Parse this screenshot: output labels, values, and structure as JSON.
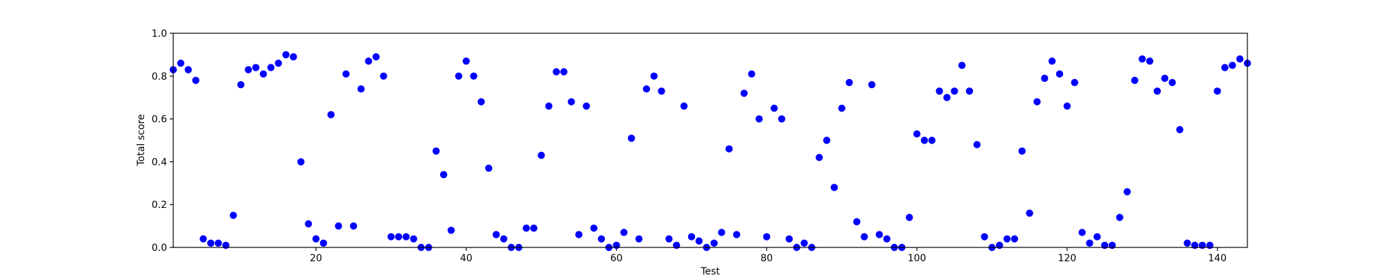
{
  "chart_data": {
    "type": "scatter",
    "title": "",
    "xlabel": "Test",
    "ylabel": "Total score",
    "xlim": [
      1,
      144
    ],
    "ylim": [
      0,
      1.0
    ],
    "xticks": [
      20,
      40,
      60,
      80,
      100,
      120,
      140
    ],
    "xtick_labels": [
      "20",
      "40",
      "60",
      "80",
      "100",
      "120",
      "140"
    ],
    "yticks": [
      0.0,
      0.2,
      0.4,
      0.6,
      0.8,
      1.0
    ],
    "ytick_labels": [
      "0.0",
      "0.2",
      "0.4",
      "0.6",
      "0.8",
      "1.0"
    ],
    "grid": false,
    "marker_color": "#0000ff",
    "x": [
      1,
      2,
      3,
      4,
      5,
      6,
      7,
      8,
      9,
      10,
      11,
      12,
      13,
      14,
      15,
      16,
      17,
      18,
      19,
      20,
      21,
      22,
      23,
      24,
      25,
      26,
      27,
      28,
      29,
      30,
      31,
      32,
      33,
      34,
      35,
      36,
      37,
      38,
      39,
      40,
      41,
      42,
      43,
      44,
      45,
      46,
      47,
      48,
      49,
      50,
      51,
      52,
      53,
      54,
      55,
      56,
      57,
      58,
      59,
      60,
      61,
      62,
      63,
      64,
      65,
      66,
      67,
      68,
      69,
      70,
      71,
      72,
      73,
      74,
      75,
      76,
      77,
      78,
      79,
      80,
      81,
      82,
      83,
      84,
      85,
      86,
      87,
      88,
      89,
      90,
      91,
      92,
      93,
      94,
      95,
      96,
      97,
      98,
      99,
      100,
      101,
      102,
      103,
      104,
      105,
      106,
      107,
      108,
      109,
      110,
      111,
      112,
      113,
      114,
      115,
      116,
      117,
      118,
      119,
      120,
      121,
      122,
      123,
      124,
      125,
      126,
      127,
      128,
      129,
      130,
      131,
      132,
      133,
      134,
      135,
      136,
      137,
      138,
      139,
      140,
      141,
      142,
      143,
      144
    ],
    "y": [
      0.83,
      0.86,
      0.83,
      0.78,
      0.04,
      0.02,
      0.02,
      0.01,
      0.15,
      0.76,
      0.83,
      0.84,
      0.81,
      0.84,
      0.86,
      0.9,
      0.89,
      0.4,
      0.11,
      0.04,
      0.02,
      0.62,
      0.1,
      0.81,
      0.1,
      0.74,
      0.87,
      0.89,
      0.8,
      0.05,
      0.05,
      0.05,
      0.04,
      0.0,
      0.0,
      0.45,
      0.34,
      0.08,
      0.8,
      0.87,
      0.8,
      0.68,
      0.37,
      0.06,
      0.04,
      0.0,
      0.0,
      0.09,
      0.09,
      0.43,
      0.66,
      0.82,
      0.82,
      0.68,
      0.06,
      0.66,
      0.09,
      0.04,
      0.0,
      0.01,
      0.07,
      0.51,
      0.04,
      0.74,
      0.8,
      0.73,
      0.04,
      0.01,
      0.66,
      0.05,
      0.03,
      0.0,
      0.02,
      0.07,
      0.46,
      0.06,
      0.72,
      0.81,
      0.6,
      0.05,
      0.65,
      0.6,
      0.04,
      0.0,
      0.02,
      0.0,
      0.42,
      0.5,
      0.28,
      0.65,
      0.77,
      0.12,
      0.05,
      0.76,
      0.06,
      0.04,
      0.0,
      0.0,
      0.14,
      0.53,
      0.5,
      0.5,
      0.73,
      0.7,
      0.73,
      0.85,
      0.73,
      0.48,
      0.05,
      0.0,
      0.01,
      0.04,
      0.04,
      0.45,
      0.16,
      0.68,
      0.79,
      0.87,
      0.81,
      0.66,
      0.77,
      0.07,
      0.02,
      0.05,
      0.01,
      0.01,
      0.14,
      0.26,
      0.78,
      0.88,
      0.87,
      0.73,
      0.79,
      0.77,
      0.55,
      0.02,
      0.01,
      0.01,
      0.01,
      0.73,
      0.84,
      0.85,
      0.88,
      0.86
    ]
  }
}
